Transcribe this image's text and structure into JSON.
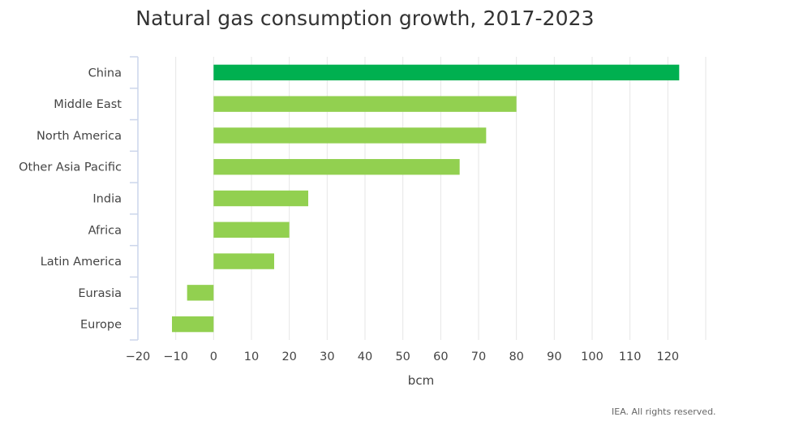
{
  "credit": "IEA. All rights reserved.",
  "colors": {
    "highlight": "#00b050",
    "bar": "#92d050",
    "grid": "#e6e6e6",
    "axis": "#ccd6eb"
  },
  "chart_data": {
    "type": "bar",
    "orientation": "horizontal",
    "title": "Natural gas consumption growth, 2017-2023",
    "xlabel": "bcm",
    "ylabel": "",
    "xlim": [
      -20,
      130
    ],
    "xticks": [
      -20,
      -10,
      0,
      10,
      20,
      30,
      40,
      50,
      60,
      70,
      80,
      90,
      100,
      110,
      120
    ],
    "grid": true,
    "legend": "none",
    "categories": [
      "China",
      "Middle East",
      "North America",
      "Other Asia Pacific",
      "India",
      "Africa",
      "Latin America",
      "Eurasia",
      "Europe"
    ],
    "values": [
      123,
      80,
      72,
      65,
      25,
      20,
      16,
      -7,
      -11
    ],
    "highlight": [
      "China"
    ]
  }
}
